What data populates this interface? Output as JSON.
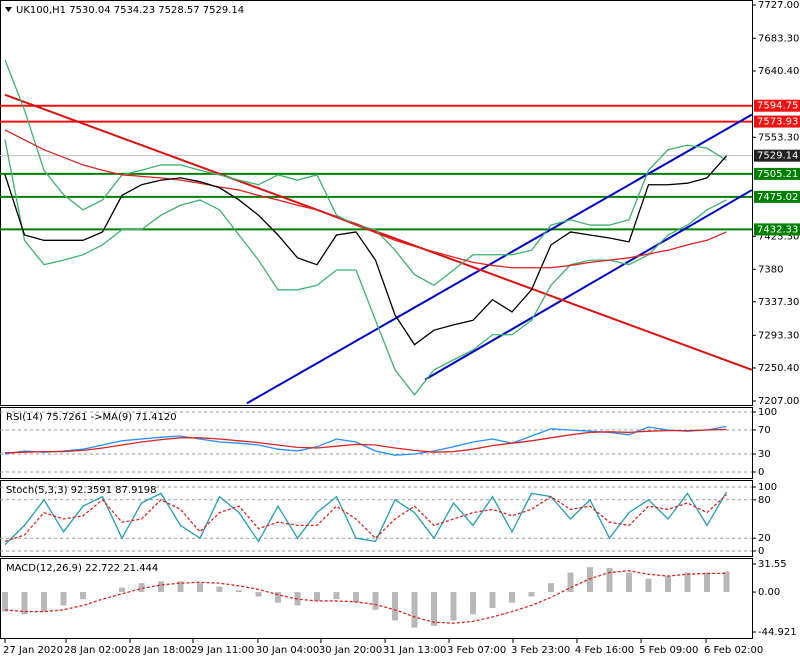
{
  "chart_data": [
    {
      "type": "line",
      "title": "UK100,H1  7530.04 7534.23 7528.57 7529.14",
      "ylim": [
        7207,
        7727
      ],
      "yticks": [
        {
          "value": 7727,
          "label": "7727.00"
        },
        {
          "value": 7683.3,
          "label": "7683.30"
        },
        {
          "value": 7640.4,
          "label": "7640.40"
        },
        {
          "value": 7553.3,
          "label": "7553.30"
        },
        {
          "value": 7423.3,
          "label": "7423.30"
        },
        7380,
        {
          "value": 7337.3,
          "label": "7337.30"
        },
        {
          "value": 7293.3,
          "label": "7293.30"
        },
        {
          "value": 7250.4,
          "label": "7250.40"
        },
        {
          "value": 7207,
          "label": "7207.00"
        }
      ],
      "grid": false,
      "series": [
        {
          "color": "#3cb371",
          "values": [
            7655,
            7589,
            7510,
            7478,
            7458,
            7471,
            7504,
            7510,
            7517,
            7517,
            7510,
            7504,
            7497,
            7491,
            7504,
            7497,
            7504,
            7451,
            7438,
            7432,
            7405,
            7373,
            7359,
            7379,
            7399,
            7399,
            7399,
            7405,
            7438,
            7445,
            7438,
            7438,
            7445,
            7510,
            7537,
            7543,
            7539,
            7523
          ]
        },
        {
          "color": "#3cb371",
          "values": [
            7550,
            7418,
            7386,
            7392,
            7399,
            7412,
            7432,
            7432,
            7451,
            7464,
            7471,
            7458,
            7425,
            7392,
            7353,
            7353,
            7359,
            7379,
            7379,
            7313,
            7248,
            7215,
            7248,
            7261,
            7274,
            7294,
            7294,
            7313,
            7359,
            7386,
            7392,
            7392,
            7386,
            7399,
            7425,
            7438,
            7458,
            7471
          ]
        },
        {
          "color": "#dd2222",
          "values": [
            7563,
            7550,
            7537,
            7527,
            7517,
            7510,
            7504,
            7502,
            7500,
            7497,
            7493,
            7488,
            7484,
            7477,
            7471,
            7464,
            7458,
            7448,
            7438,
            7428,
            7418,
            7410,
            7403,
            7396,
            7389,
            7385,
            7382,
            7382,
            7382,
            7385,
            7389,
            7392,
            7395,
            7400,
            7405,
            7412,
            7418,
            7429
          ]
        },
        {
          "color": "#000000",
          "values": [
            7504,
            7425,
            7418,
            7418,
            7418,
            7429,
            7477,
            7491,
            7497,
            7500,
            7495,
            7487,
            7471,
            7451,
            7425,
            7395,
            7386,
            7425,
            7429,
            7392,
            7320,
            7281,
            7300,
            7307,
            7313,
            7340,
            7324,
            7353,
            7412,
            7429,
            7425,
            7421,
            7416,
            7491,
            7491,
            7493,
            7500,
            7529
          ]
        }
      ],
      "levels": [
        {
          "value": 7594.75,
          "color": "#ee1111"
        },
        {
          "value": 7573.93,
          "color": "#ee1111"
        },
        {
          "value": 7529.14,
          "color": "#c0c0c0"
        },
        {
          "value": 7505.21,
          "color": "#008000"
        },
        {
          "value": 7475.02,
          "color": "#008000"
        },
        {
          "value": 7432.33,
          "color": "#008000"
        }
      ],
      "trendlines": [
        {
          "color": "#0000cc",
          "x": [
            12.41,
            38.3
          ],
          "y": [
            7204,
            7583
          ]
        },
        {
          "color": "#0000cc",
          "x": [
            21.54,
            38.3
          ],
          "y": [
            7235,
            7484
          ]
        },
        {
          "color": "#dd1111",
          "x": [
            0,
            38.3
          ],
          "y": [
            7609,
            7248
          ]
        }
      ],
      "xticks": [
        {
          "value": 0,
          "label": "27 Jan 2020"
        },
        {
          "value": 3.13,
          "label": "28 Jan 02:00"
        },
        {
          "value": 6.41,
          "label": "28 Jan 18:00"
        },
        {
          "value": 9.64,
          "label": "29 Jan 11:00"
        },
        {
          "value": 12.97,
          "label": "30 Jan 04:00"
        },
        {
          "value": 16.2,
          "label": "30 Jan 20:00"
        },
        {
          "value": 19.49,
          "label": "31 Jan 13:00"
        },
        {
          "value": 22.77,
          "label": "3 Feb 07:00"
        },
        {
          "value": 26.05,
          "label": "3 Feb 23:00"
        },
        {
          "value": 29.33,
          "label": "4 Feb 16:00"
        },
        {
          "value": 32.62,
          "label": "5 Feb 09:00"
        },
        {
          "value": 35.95,
          "label": "6 Feb 02:00"
        }
      ]
    },
    {
      "type": "line",
      "title": "RSI(14) 75.7261 ->MA(9) 71.4120",
      "ylim": [
        0,
        100
      ],
      "yticks": [
        100,
        70,
        30,
        0
      ],
      "grid": true,
      "series": [
        {
          "color": "#1e90ff",
          "values": [
            30,
            35,
            33,
            35,
            38,
            45,
            52,
            55,
            58,
            60,
            55,
            50,
            48,
            45,
            38,
            35,
            42,
            55,
            50,
            35,
            28,
            30,
            35,
            42,
            50,
            55,
            48,
            60,
            72,
            70,
            68,
            66,
            62,
            75,
            70,
            68,
            70,
            76
          ]
        },
        {
          "color": "#dd2222",
          "values": [
            32,
            33,
            34,
            34,
            36,
            40,
            45,
            50,
            54,
            57,
            57,
            55,
            52,
            49,
            45,
            41,
            40,
            43,
            46,
            45,
            40,
            36,
            33,
            34,
            38,
            44,
            48,
            52,
            57,
            62,
            66,
            67,
            66,
            68,
            69,
            69,
            70,
            71
          ]
        }
      ]
    },
    {
      "type": "line",
      "title": "Stoch(5,3,3) 92.3591 87.9198",
      "ylim": [
        0,
        100
      ],
      "yticks": [
        100,
        80,
        20,
        0
      ],
      "grid": true,
      "series": [
        {
          "color": "#20a0b0",
          "values": [
            10,
            40,
            80,
            30,
            70,
            85,
            20,
            75,
            90,
            40,
            20,
            85,
            60,
            15,
            70,
            20,
            60,
            85,
            20,
            15,
            80,
            60,
            20,
            75,
            40,
            85,
            30,
            90,
            85,
            50,
            80,
            20,
            60,
            80,
            50,
            90,
            40,
            92
          ]
        },
        {
          "color": "#dd2222",
          "style": "dashed",
          "values": [
            15,
            25,
            60,
            50,
            55,
            80,
            45,
            50,
            80,
            65,
            30,
            60,
            70,
            35,
            45,
            40,
            40,
            70,
            50,
            20,
            50,
            70,
            40,
            50,
            60,
            65,
            55,
            65,
            85,
            65,
            70,
            45,
            40,
            70,
            65,
            75,
            60,
            88
          ]
        }
      ]
    },
    {
      "type": "bar",
      "title": "MACD(12,26,9) 22.722 21.444",
      "ylim": [
        -44.921,
        31.55
      ],
      "yticks": [
        31.55,
        {
          "value": 0,
          "label": "0.00"
        },
        -44.921
      ],
      "grid": false,
      "series": [
        {
          "color": "#b8b8b8",
          "type": "bar",
          "values": [
            -22,
            -25,
            -22,
            -15,
            -8,
            0,
            5,
            10,
            12,
            12,
            10,
            6,
            2,
            -5,
            -12,
            -15,
            -10,
            -8,
            -12,
            -20,
            -32,
            -40,
            -38,
            -32,
            -25,
            -18,
            -12,
            -5,
            10,
            22,
            28,
            27,
            22,
            15,
            18,
            22,
            22,
            23
          ]
        },
        {
          "color": "#dd2222",
          "style": "dashed",
          "values": [
            -20,
            -22,
            -22,
            -20,
            -15,
            -8,
            -2,
            4,
            8,
            10,
            11,
            10,
            7,
            3,
            -3,
            -8,
            -10,
            -10,
            -11,
            -14,
            -20,
            -28,
            -34,
            -35,
            -33,
            -28,
            -22,
            -15,
            -6,
            5,
            15,
            22,
            24,
            20,
            18,
            20,
            21,
            21
          ]
        }
      ]
    }
  ]
}
